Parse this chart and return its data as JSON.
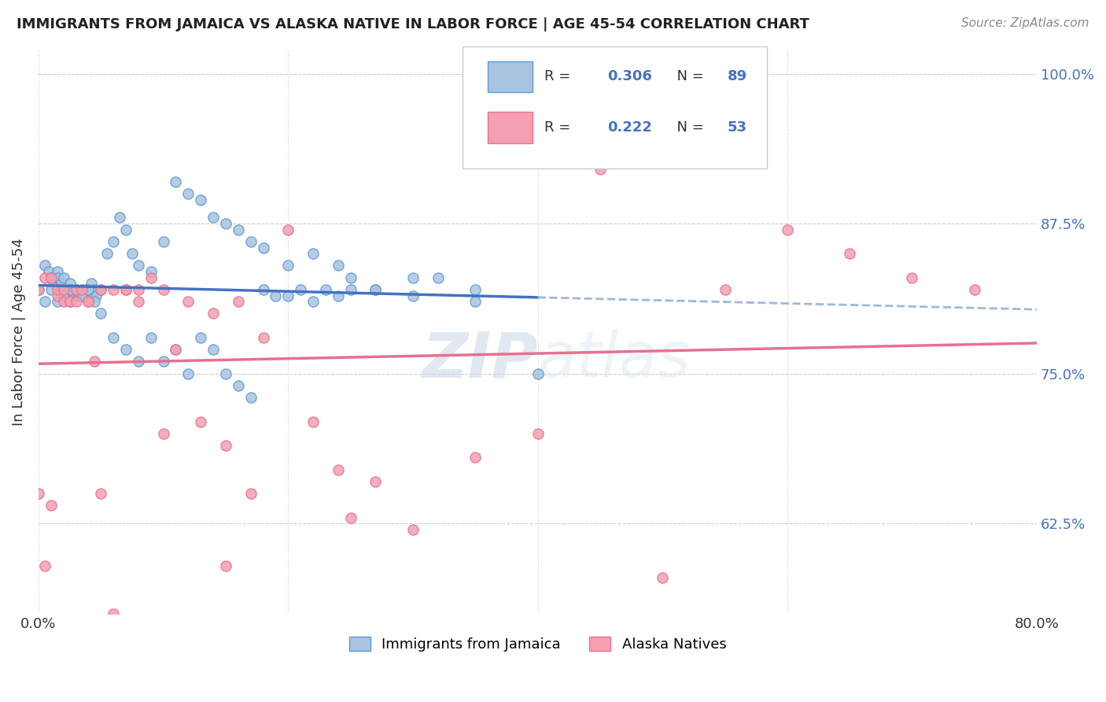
{
  "title": "IMMIGRANTS FROM JAMAICA VS ALASKA NATIVE IN LABOR FORCE | AGE 45-54 CORRELATION CHART",
  "source": "Source: ZipAtlas.com",
  "ylabel": "In Labor Force | Age 45-54",
  "x_min": 0.0,
  "x_max": 0.8,
  "y_min": 0.55,
  "y_max": 1.02,
  "y_ticks": [
    0.625,
    0.75,
    0.875,
    1.0
  ],
  "y_tick_labels": [
    "62.5%",
    "75.0%",
    "87.5%",
    "100.0%"
  ],
  "jamaica_R": 0.306,
  "jamaica_N": 89,
  "alaska_R": 0.222,
  "alaska_N": 53,
  "legend_labels": [
    "Immigrants from Jamaica",
    "Alaska Natives"
  ],
  "jamaica_color": "#a8c4e0",
  "alaska_color": "#f4a0b0",
  "jamaica_edge": "#5b9bd5",
  "alaska_edge": "#e87090",
  "jamaica_line_color": "#4472c4",
  "alaska_line_color": "#e87090",
  "dashed_line_color": "#a0b8d8",
  "watermark_zip": "ZIP",
  "watermark_atlas": "atlas",
  "jamaica_x": [
    0.0,
    0.005,
    0.008,
    0.01,
    0.012,
    0.013,
    0.015,
    0.016,
    0.017,
    0.018,
    0.019,
    0.02,
    0.021,
    0.022,
    0.023,
    0.025,
    0.026,
    0.027,
    0.028,
    0.03,
    0.032,
    0.033,
    0.034,
    0.035,
    0.036,
    0.038,
    0.04,
    0.042,
    0.044,
    0.046,
    0.05,
    0.055,
    0.06,
    0.065,
    0.07,
    0.075,
    0.08,
    0.09,
    0.1,
    0.11,
    0.12,
    0.13,
    0.14,
    0.15,
    0.16,
    0.17,
    0.18,
    0.2,
    0.22,
    0.24,
    0.25,
    0.27,
    0.3,
    0.35,
    0.4,
    0.005,
    0.01,
    0.015,
    0.02,
    0.025,
    0.03,
    0.035,
    0.04,
    0.045,
    0.05,
    0.06,
    0.07,
    0.08,
    0.09,
    0.1,
    0.11,
    0.12,
    0.13,
    0.14,
    0.15,
    0.16,
    0.17,
    0.18,
    0.19,
    0.2,
    0.21,
    0.22,
    0.23,
    0.24,
    0.25,
    0.27,
    0.3,
    0.32,
    0.35
  ],
  "jamaica_y": [
    0.82,
    0.84,
    0.835,
    0.83,
    0.825,
    0.83,
    0.835,
    0.83,
    0.82,
    0.825,
    0.82,
    0.83,
    0.82,
    0.818,
    0.82,
    0.825,
    0.82,
    0.818,
    0.815,
    0.82,
    0.815,
    0.818,
    0.815,
    0.82,
    0.815,
    0.82,
    0.82,
    0.825,
    0.82,
    0.815,
    0.82,
    0.85,
    0.86,
    0.88,
    0.87,
    0.85,
    0.84,
    0.835,
    0.86,
    0.91,
    0.9,
    0.895,
    0.88,
    0.875,
    0.87,
    0.86,
    0.855,
    0.84,
    0.85,
    0.84,
    0.83,
    0.82,
    0.815,
    0.81,
    0.75,
    0.81,
    0.82,
    0.81,
    0.815,
    0.82,
    0.82,
    0.815,
    0.82,
    0.81,
    0.8,
    0.78,
    0.77,
    0.76,
    0.78,
    0.76,
    0.77,
    0.75,
    0.78,
    0.77,
    0.75,
    0.74,
    0.73,
    0.82,
    0.815,
    0.815,
    0.82,
    0.81,
    0.82,
    0.815,
    0.82,
    0.82,
    0.83,
    0.83,
    0.82
  ],
  "alaska_x": [
    0.0,
    0.005,
    0.01,
    0.015,
    0.02,
    0.025,
    0.03,
    0.035,
    0.04,
    0.045,
    0.05,
    0.06,
    0.07,
    0.08,
    0.09,
    0.1,
    0.11,
    0.12,
    0.13,
    0.14,
    0.15,
    0.16,
    0.17,
    0.18,
    0.2,
    0.22,
    0.24,
    0.25,
    0.27,
    0.3,
    0.35,
    0.4,
    0.45,
    0.5,
    0.55,
    0.6,
    0.65,
    0.7,
    0.75,
    0.0,
    0.005,
    0.01,
    0.015,
    0.02,
    0.025,
    0.03,
    0.04,
    0.05,
    0.06,
    0.07,
    0.08,
    0.1,
    0.15
  ],
  "alaska_y": [
    0.82,
    0.83,
    0.83,
    0.815,
    0.81,
    0.81,
    0.82,
    0.82,
    0.81,
    0.76,
    0.82,
    0.82,
    0.82,
    0.81,
    0.83,
    0.7,
    0.77,
    0.81,
    0.71,
    0.8,
    0.69,
    0.81,
    0.65,
    0.78,
    0.87,
    0.71,
    0.67,
    0.63,
    0.66,
    0.62,
    0.68,
    0.7,
    0.92,
    0.58,
    0.82,
    0.87,
    0.85,
    0.83,
    0.82,
    0.65,
    0.59,
    0.64,
    0.82,
    0.82,
    0.81,
    0.81,
    0.81,
    0.65,
    0.55,
    0.82,
    0.82,
    0.82,
    0.59
  ]
}
